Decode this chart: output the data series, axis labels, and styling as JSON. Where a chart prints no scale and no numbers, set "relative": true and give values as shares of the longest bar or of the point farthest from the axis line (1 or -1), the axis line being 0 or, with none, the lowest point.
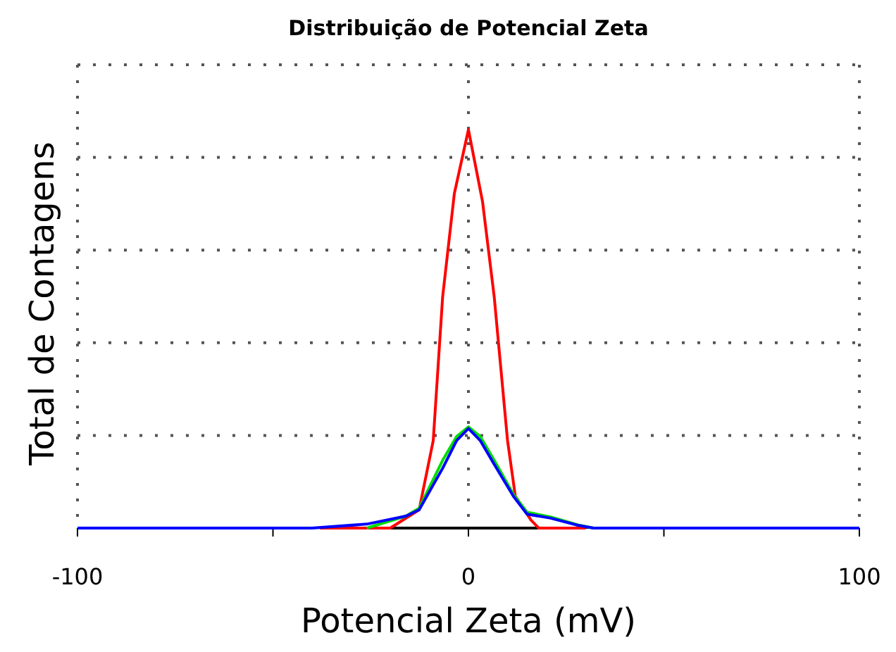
{
  "chart_data": {
    "type": "line",
    "title": "Distribuição de Potencial Zeta",
    "xlabel": "Potencial Zeta (mV)",
    "ylabel": "Total de Contagens",
    "relative": true,
    "xlim": [
      -100,
      100
    ],
    "xticks": [
      -100,
      {
        "value": -50,
        "label": null
      },
      0,
      {
        "value": 50,
        "label": null
      },
      100
    ],
    "grid": true,
    "line_style": "solid",
    "series": [
      {
        "color": "#000000",
        "x": [
          -20,
          18
        ],
        "values": [
          0,
          0
        ]
      },
      {
        "color": "#ff0000",
        "x": [
          -38,
          -20,
          -12.6,
          -9,
          -6.6,
          -3.6,
          0,
          3.6,
          6.6,
          10,
          12,
          16,
          18,
          30
        ],
        "values": [
          0,
          0,
          0.046,
          0.22,
          0.58,
          0.84,
          1,
          0.82,
          0.58,
          0.22,
          0.08,
          0.02,
          0,
          0
        ]
      },
      {
        "color": "#00dd00",
        "x": [
          -26,
          -16,
          -12.6,
          -6.6,
          -3,
          0,
          3,
          6.6,
          11.5,
          15,
          21,
          28,
          32
        ],
        "values": [
          0,
          0.03,
          0.05,
          0.17,
          0.23,
          0.254,
          0.23,
          0.17,
          0.085,
          0.04,
          0.028,
          0.008,
          0
        ]
      },
      {
        "color": "#0000ff",
        "x": [
          -100,
          -40,
          -26,
          -16,
          -12.6,
          -6.6,
          -3,
          0,
          3,
          6.6,
          11.5,
          15,
          21,
          28,
          32,
          100
        ],
        "values": [
          0,
          0,
          0.01,
          0.03,
          0.046,
          0.15,
          0.22,
          0.25,
          0.22,
          0.16,
          0.08,
          0.035,
          0.025,
          0.007,
          0,
          0
        ]
      }
    ]
  }
}
